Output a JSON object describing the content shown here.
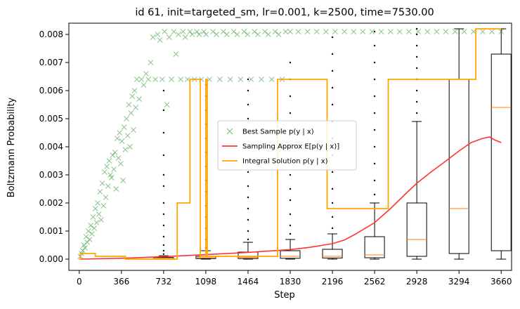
{
  "chart_data": {
    "type": "scatter",
    "title": "id 61, init=targeted_sm, lr=0.001, k=2500, time=7530.00",
    "xlabel": "Step",
    "ylabel": "Boltzmann Probability",
    "xlim": [
      -90,
      3750
    ],
    "ylim": [
      -0.0004,
      0.0084
    ],
    "x_ticks": [
      0,
      366,
      732,
      1098,
      1464,
      1830,
      2196,
      2562,
      2928,
      3294,
      3660
    ],
    "y_ticks": [
      0.0,
      0.001,
      0.002,
      0.003,
      0.004,
      0.005,
      0.006,
      0.007,
      0.008
    ],
    "x_tick_labels": [
      "0",
      "366",
      "732",
      "1098",
      "1464",
      "1830",
      "2196",
      "2562",
      "2928",
      "3294",
      "3660"
    ],
    "y_tick_labels": [
      "0.000",
      "0.001",
      "0.002",
      "0.003",
      "0.004",
      "0.005",
      "0.006",
      "0.007",
      "0.008"
    ],
    "legend_position": "center",
    "series": [
      {
        "name": "Best Sample p(y | x)",
        "kind": "scatter",
        "color": "#008000",
        "marker": "x",
        "opacity": 0.45,
        "points": [
          [
            10,
            0.0001
          ],
          [
            20,
            0.0002
          ],
          [
            30,
            0.0003
          ],
          [
            40,
            0.0005
          ],
          [
            50,
            0.0004
          ],
          [
            60,
            0.0008
          ],
          [
            70,
            0.0006
          ],
          [
            80,
            0.001
          ],
          [
            90,
            0.0007
          ],
          [
            100,
            0.0012
          ],
          [
            110,
            0.0009
          ],
          [
            120,
            0.0015
          ],
          [
            130,
            0.0011
          ],
          [
            140,
            0.0018
          ],
          [
            150,
            0.0013
          ],
          [
            160,
            0.002
          ],
          [
            170,
            0.0016
          ],
          [
            180,
            0.0024
          ],
          [
            190,
            0.0014
          ],
          [
            200,
            0.0027
          ],
          [
            210,
            0.0019
          ],
          [
            220,
            0.0031
          ],
          [
            230,
            0.0022
          ],
          [
            240,
            0.0033
          ],
          [
            250,
            0.0026
          ],
          [
            260,
            0.0035
          ],
          [
            270,
            0.003
          ],
          [
            280,
            0.0029
          ],
          [
            290,
            0.0037
          ],
          [
            300,
            0.0032
          ],
          [
            310,
            0.0038
          ],
          [
            320,
            0.0025
          ],
          [
            330,
            0.0043
          ],
          [
            340,
            0.0036
          ],
          [
            350,
            0.0045
          ],
          [
            360,
            0.0034
          ],
          [
            370,
            0.0042
          ],
          [
            380,
            0.0028
          ],
          [
            390,
            0.0047
          ],
          [
            400,
            0.0039
          ],
          [
            410,
            0.005
          ],
          [
            420,
            0.0044
          ],
          [
            430,
            0.0055
          ],
          [
            440,
            0.004
          ],
          [
            450,
            0.0052
          ],
          [
            460,
            0.0058
          ],
          [
            470,
            0.0046
          ],
          [
            480,
            0.006
          ],
          [
            490,
            0.0054
          ],
          [
            500,
            0.0064
          ],
          [
            520,
            0.0057
          ],
          [
            540,
            0.0064
          ],
          [
            560,
            0.0062
          ],
          [
            580,
            0.0066
          ],
          [
            600,
            0.0064
          ],
          [
            620,
            0.007
          ],
          [
            640,
            0.0079
          ],
          [
            660,
            0.0064
          ],
          [
            680,
            0.008
          ],
          [
            700,
            0.0078
          ],
          [
            720,
            0.0064
          ],
          [
            740,
            0.0081
          ],
          [
            760,
            0.0055
          ],
          [
            780,
            0.0079
          ],
          [
            800,
            0.0064
          ],
          [
            820,
            0.0081
          ],
          [
            840,
            0.0073
          ],
          [
            860,
            0.008
          ],
          [
            880,
            0.0064
          ],
          [
            900,
            0.0081
          ],
          [
            920,
            0.0079
          ],
          [
            940,
            0.0064
          ],
          [
            960,
            0.0081
          ],
          [
            980,
            0.008
          ],
          [
            1000,
            0.0064
          ],
          [
            1020,
            0.0081
          ],
          [
            1040,
            0.008
          ],
          [
            1060,
            0.0064
          ],
          [
            1080,
            0.0081
          ],
          [
            1100,
            0.008
          ],
          [
            1130,
            0.0064
          ],
          [
            1160,
            0.0081
          ],
          [
            1190,
            0.008
          ],
          [
            1220,
            0.0064
          ],
          [
            1250,
            0.0081
          ],
          [
            1280,
            0.008
          ],
          [
            1310,
            0.0064
          ],
          [
            1340,
            0.0081
          ],
          [
            1370,
            0.008
          ],
          [
            1400,
            0.0064
          ],
          [
            1430,
            0.0081
          ],
          [
            1460,
            0.008
          ],
          [
            1490,
            0.0064
          ],
          [
            1520,
            0.0081
          ],
          [
            1550,
            0.008
          ],
          [
            1580,
            0.0064
          ],
          [
            1610,
            0.0081
          ],
          [
            1640,
            0.008
          ],
          [
            1670,
            0.0064
          ],
          [
            1700,
            0.0081
          ],
          [
            1730,
            0.008
          ],
          [
            1760,
            0.0064
          ],
          [
            1790,
            0.0081
          ],
          [
            1830,
            0.0081
          ],
          [
            1900,
            0.0081
          ],
          [
            1980,
            0.0081
          ],
          [
            2060,
            0.0081
          ],
          [
            2140,
            0.0081
          ],
          [
            2220,
            0.0081
          ],
          [
            2300,
            0.0081
          ],
          [
            2380,
            0.0081
          ],
          [
            2460,
            0.0081
          ],
          [
            2540,
            0.0081
          ],
          [
            2620,
            0.0081
          ],
          [
            2700,
            0.0081
          ],
          [
            2780,
            0.0081
          ],
          [
            2860,
            0.0081
          ],
          [
            2940,
            0.0081
          ],
          [
            3020,
            0.0081
          ],
          [
            3100,
            0.0081
          ],
          [
            3180,
            0.0081
          ],
          [
            3260,
            0.0081
          ],
          [
            3340,
            0.0081
          ],
          [
            3420,
            0.0081
          ],
          [
            3500,
            0.0081
          ],
          [
            3580,
            0.0081
          ],
          [
            3660,
            0.0081
          ]
        ]
      },
      {
        "name": "Sampling Approx E[p(y | x)]",
        "kind": "line",
        "color": "#ff3333",
        "points": [
          [
            0,
            0.0
          ],
          [
            366,
            3e-05
          ],
          [
            732,
            9e-05
          ],
          [
            1098,
            0.00016
          ],
          [
            1464,
            0.00024
          ],
          [
            1830,
            0.00034
          ],
          [
            2000,
            0.00042
          ],
          [
            2196,
            0.00055
          ],
          [
            2300,
            0.00068
          ],
          [
            2400,
            0.0009
          ],
          [
            2562,
            0.0013
          ],
          [
            2700,
            0.0018
          ],
          [
            2850,
            0.0024
          ],
          [
            2928,
            0.0027
          ],
          [
            3050,
            0.0031
          ],
          [
            3150,
            0.0034
          ],
          [
            3294,
            0.00385
          ],
          [
            3400,
            0.00415
          ],
          [
            3500,
            0.0043
          ],
          [
            3560,
            0.00435
          ],
          [
            3600,
            0.00425
          ],
          [
            3660,
            0.00415
          ]
        ]
      },
      {
        "name": "Integral Solution p(y | x)",
        "kind": "step",
        "color": "#ffa500",
        "points": [
          [
            0,
            0.0
          ],
          [
            10,
            0.0
          ],
          [
            10,
            0.0002
          ],
          [
            140,
            0.0002
          ],
          [
            140,
            0.0001
          ],
          [
            400,
            0.0001
          ],
          [
            400,
            0.0
          ],
          [
            850,
            0.0
          ],
          [
            850,
            0.002
          ],
          [
            960,
            0.002
          ],
          [
            960,
            0.0064
          ],
          [
            1050,
            0.0064
          ],
          [
            1050,
            0.0001
          ],
          [
            1098,
            0.0001
          ],
          [
            1098,
            0.0064
          ],
          [
            1110,
            0.0064
          ],
          [
            1110,
            0.0001
          ],
          [
            1720,
            0.0001
          ],
          [
            1720,
            0.0064
          ],
          [
            2150,
            0.0064
          ],
          [
            2150,
            0.0018
          ],
          [
            2680,
            0.0018
          ],
          [
            2680,
            0.0064
          ],
          [
            3440,
            0.0064
          ],
          [
            3440,
            0.0082
          ],
          [
            3660,
            0.0082
          ]
        ]
      }
    ],
    "boxplots": [
      {
        "x": 732,
        "whislo": 0.0,
        "q1": 1e-05,
        "med": 3e-05,
        "q3": 6e-05,
        "whishi": 0.00012,
        "fliers": [
          0.00018,
          0.0003,
          0.0005,
          0.0008,
          0.0012,
          0.0016,
          0.002,
          0.0026,
          0.003,
          0.0037,
          0.0045,
          0.0053,
          0.006
        ]
      },
      {
        "x": 1098,
        "whislo": 0.0,
        "q1": 2e-05,
        "med": 5e-05,
        "q3": 0.0001,
        "whishi": 0.0003,
        "fliers": [
          0.0004,
          0.0007,
          0.0011,
          0.0015,
          0.0019,
          0.0024,
          0.0028,
          0.0033,
          0.0038,
          0.0043,
          0.0048,
          0.0053,
          0.0058,
          0.0062
        ]
      },
      {
        "x": 1464,
        "whislo": 0.0,
        "q1": 2e-05,
        "med": 6e-05,
        "q3": 0.00025,
        "whishi": 0.0006,
        "fliers": [
          0.0007,
          0.001,
          0.0014,
          0.0018,
          0.0022,
          0.0026,
          0.0031,
          0.0035,
          0.004,
          0.0045,
          0.005,
          0.0055,
          0.006,
          0.0064
        ]
      },
      {
        "x": 1830,
        "whislo": 0.0,
        "q1": 3e-05,
        "med": 0.0001,
        "q3": 0.0003,
        "whishi": 0.0007,
        "fliers": [
          0.0009,
          0.0012,
          0.0016,
          0.0021,
          0.0025,
          0.003,
          0.0035,
          0.004,
          0.0046,
          0.0052,
          0.0058,
          0.0064,
          0.007
        ]
      },
      {
        "x": 2196,
        "whislo": 0.0,
        "q1": 4e-05,
        "med": 0.0001,
        "q3": 0.00035,
        "whishi": 0.0009,
        "fliers": [
          0.0011,
          0.0015,
          0.002,
          0.0025,
          0.0031,
          0.0037,
          0.0043,
          0.0049,
          0.0055,
          0.0061,
          0.0067,
          0.0073,
          0.0079
        ]
      },
      {
        "x": 2562,
        "whislo": 0.0,
        "q1": 5e-05,
        "med": 0.00015,
        "q3": 0.0008,
        "whishi": 0.002,
        "fliers": [
          0.0023,
          0.0028,
          0.0034,
          0.004,
          0.0046,
          0.0052,
          0.0058,
          0.0064,
          0.007,
          0.0076,
          0.0081
        ]
      },
      {
        "x": 2928,
        "whislo": 0.0,
        "q1": 0.0001,
        "med": 0.0007,
        "q3": 0.002,
        "whishi": 0.0049,
        "fliers": [
          0.0052,
          0.0056,
          0.006,
          0.0064,
          0.0068,
          0.0072,
          0.0076,
          0.008,
          0.0082
        ]
      },
      {
        "x": 3294,
        "whislo": 0.0,
        "q1": 0.0002,
        "med": 0.0018,
        "q3": 0.0064,
        "whishi": 0.0082,
        "fliers": []
      },
      {
        "x": 3660,
        "whislo": 0.0,
        "q1": 0.0003,
        "med": 0.0054,
        "q3": 0.0073,
        "whishi": 0.0082,
        "fliers": []
      }
    ]
  }
}
